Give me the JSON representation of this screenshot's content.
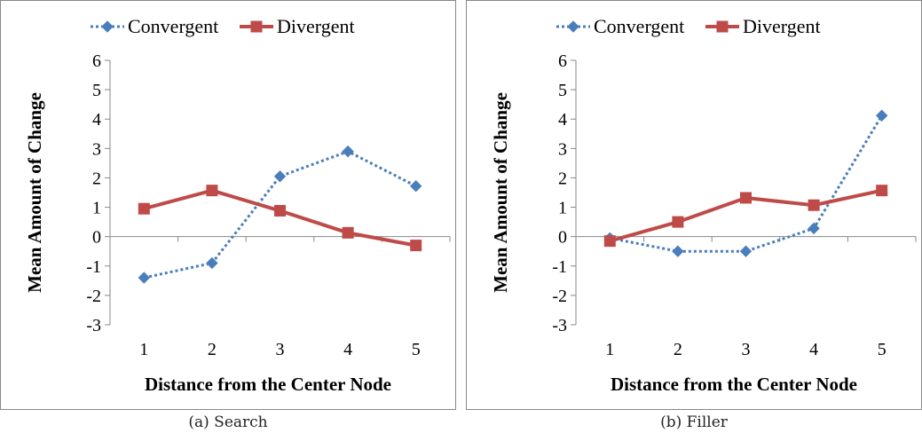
{
  "chart_data": [
    {
      "type": "line",
      "caption": "(a) Search",
      "categories": [
        1,
        2,
        3,
        4,
        5
      ],
      "series": [
        {
          "name": "Convergent",
          "values": [
            -1.4,
            -0.9,
            2.05,
            2.9,
            1.72
          ],
          "color": "#4a7ebb",
          "style": "dotted",
          "marker": "diamond"
        },
        {
          "name": "Divergent",
          "values": [
            0.95,
            1.57,
            0.88,
            0.13,
            -0.3
          ],
          "color": "#be4b48",
          "style": "solid",
          "marker": "square"
        }
      ],
      "xlabel": "Distance from the Center Node",
      "ylabel": "Mean Amount of Change",
      "ylim": [
        -3,
        6
      ],
      "yticks": [
        -3,
        -2,
        -1,
        0,
        1,
        2,
        3,
        4,
        5,
        6
      ],
      "grid": false,
      "legend": "top"
    },
    {
      "type": "line",
      "caption": "(b) Filler",
      "categories": [
        1,
        2,
        3,
        4,
        5
      ],
      "series": [
        {
          "name": "Convergent",
          "values": [
            -0.05,
            -0.5,
            -0.5,
            0.28,
            4.12
          ],
          "color": "#4a7ebb",
          "style": "dotted",
          "marker": "diamond"
        },
        {
          "name": "Divergent",
          "values": [
            -0.15,
            0.5,
            1.32,
            1.07,
            1.57
          ],
          "color": "#be4b48",
          "style": "solid",
          "marker": "square"
        }
      ],
      "xlabel": "Distance from the Center Node",
      "ylabel": "Mean Amount of Change",
      "ylim": [
        -3,
        6
      ],
      "yticks": [
        -3,
        -2,
        -1,
        0,
        1,
        2,
        3,
        4,
        5,
        6
      ],
      "grid": false,
      "legend": "top"
    }
  ]
}
